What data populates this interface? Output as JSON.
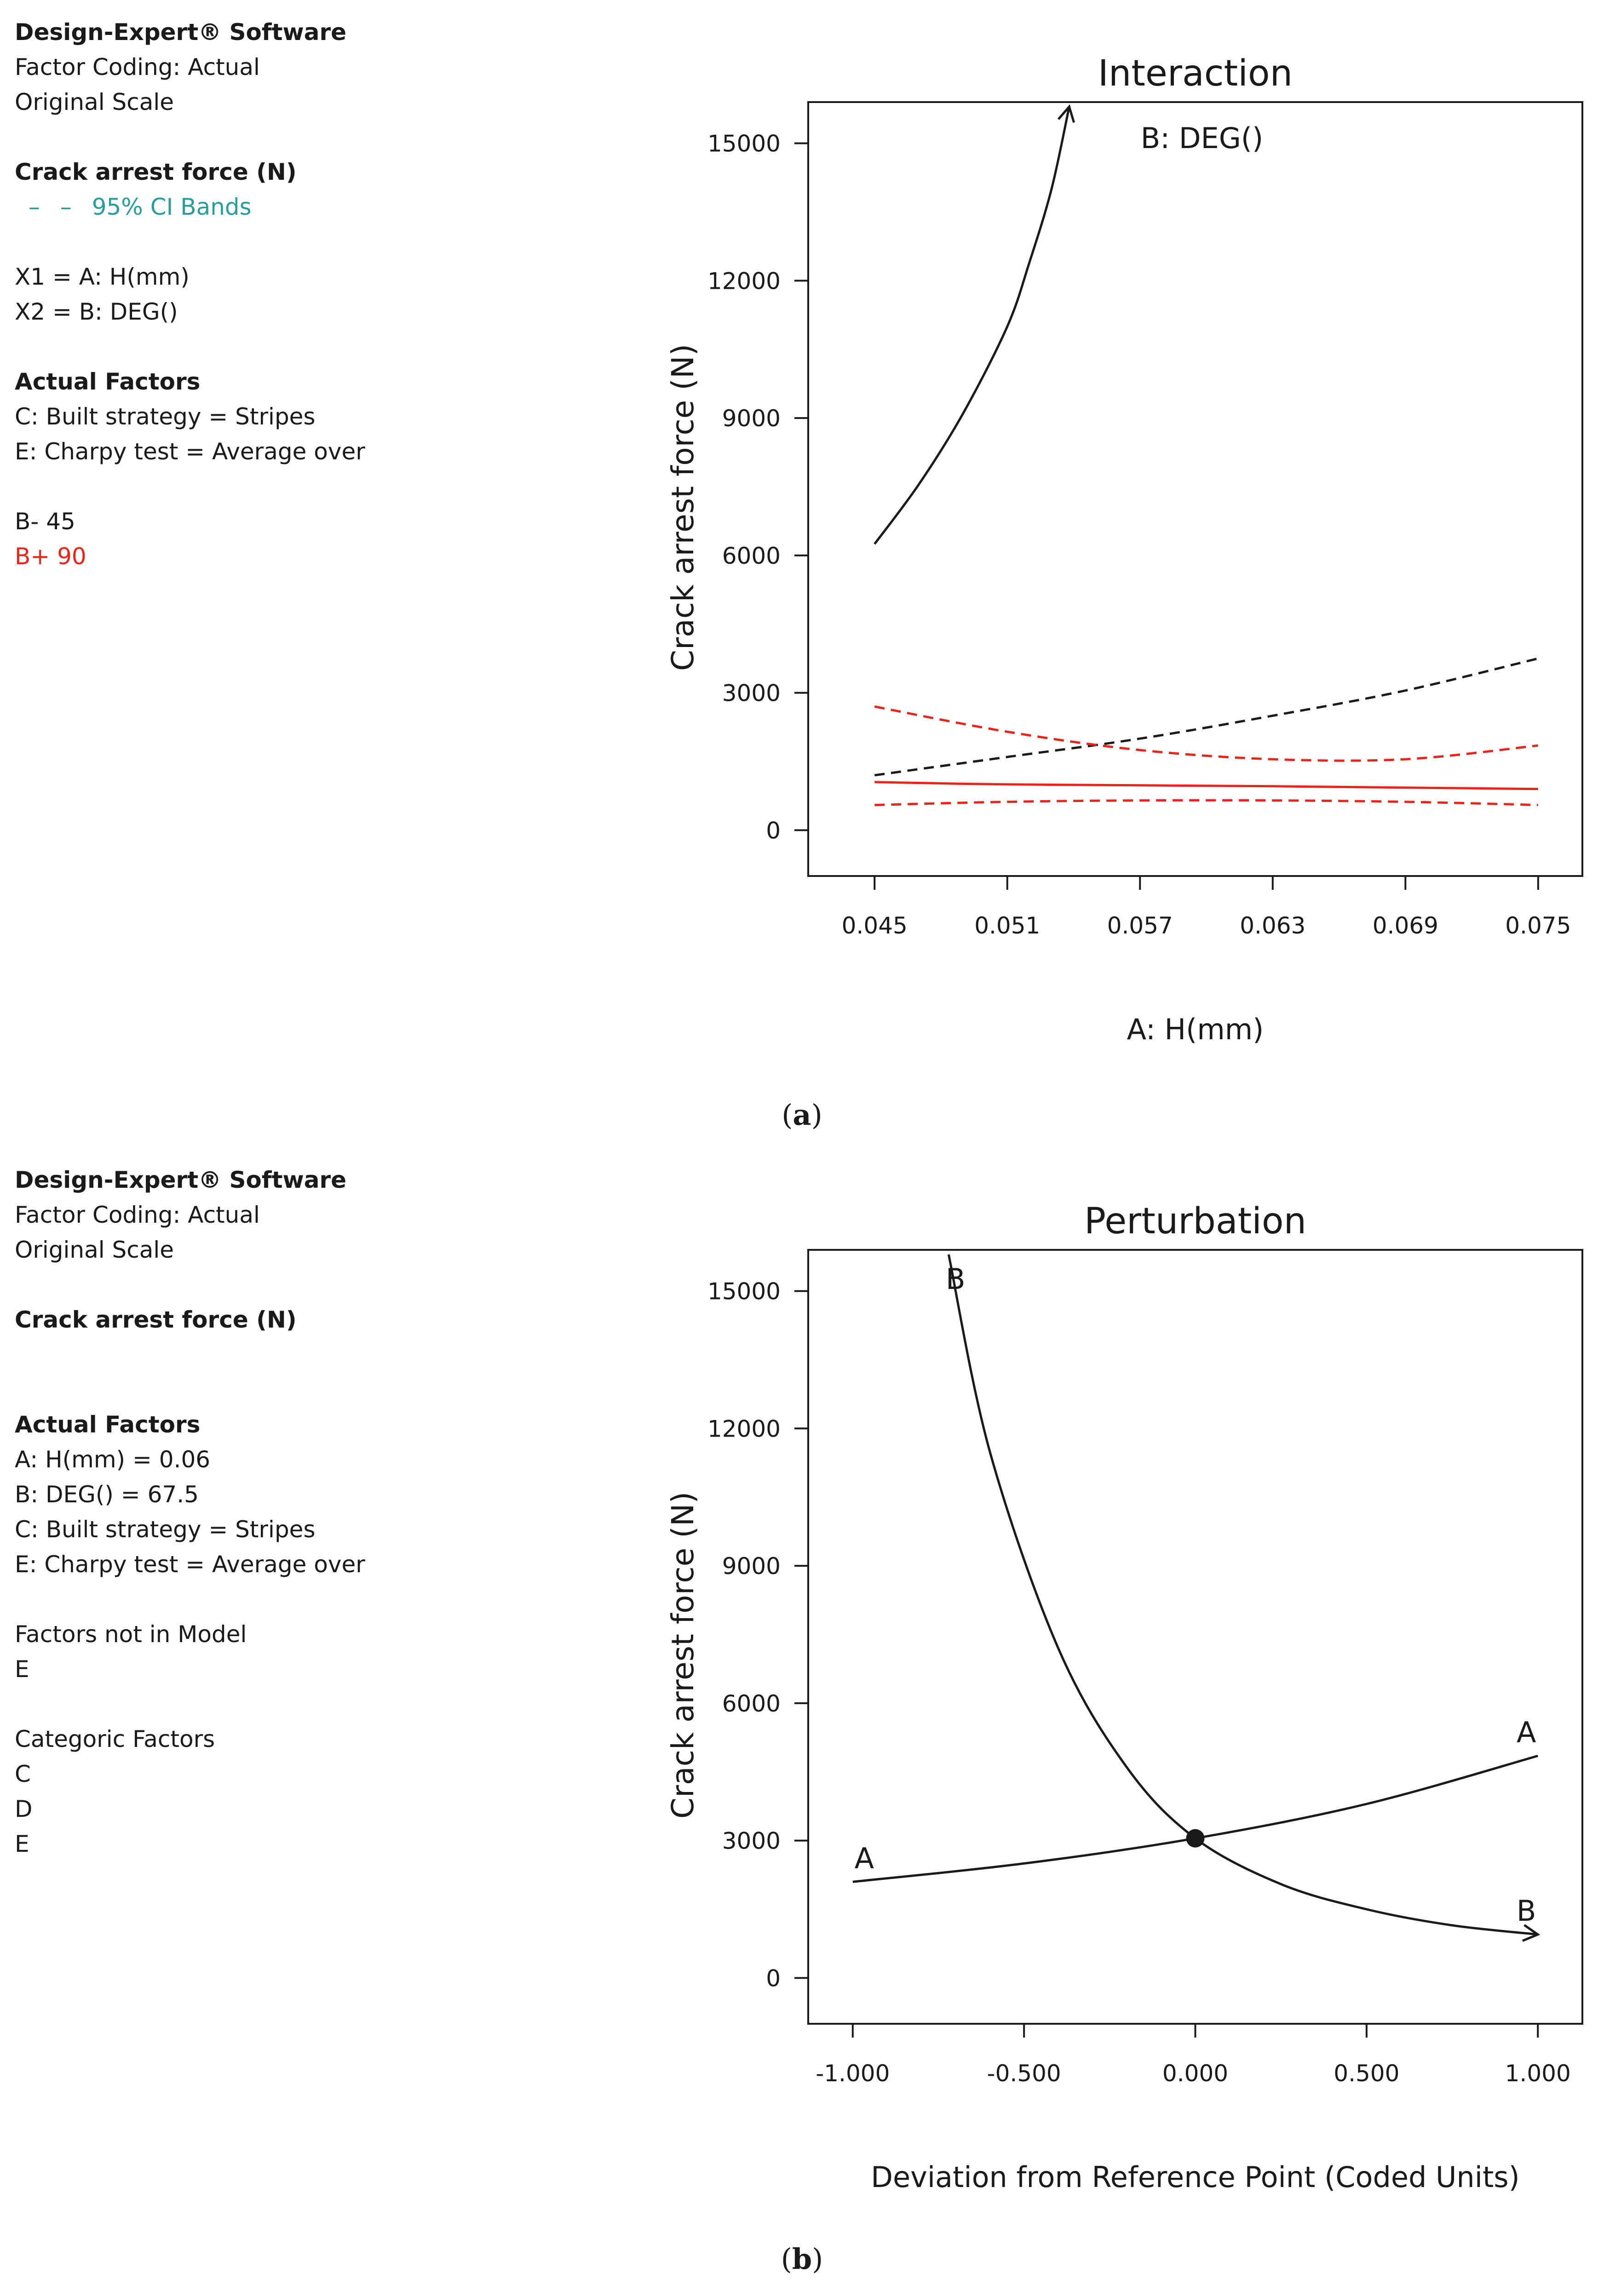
{
  "panel_a": {
    "info": {
      "software": "Design-Expert® Software",
      "coding": "Factor Coding: Actual",
      "scale": "Original Scale",
      "response": "Crack arrest force (N)",
      "ci_label": "95% CI Bands",
      "x1": "X1 = A: H(mm)",
      "x2": "X2 = B: DEG()",
      "actual_factors_heading": "Actual Factors",
      "factor_c": "C: Built strategy = Stripes",
      "factor_e": "E: Charpy test = Average over",
      "b_minus": "B- 45",
      "b_plus": "B+ 90"
    },
    "caption_open": "(",
    "caption_letter": "a",
    "caption_close": ")"
  },
  "panel_b": {
    "info": {
      "software": "Design-Expert® Software",
      "coding": "Factor Coding: Actual",
      "scale": "Original Scale",
      "response": "Crack arrest force (N)",
      "actual_factors_heading": "Actual Factors",
      "factor_a": "A: H(mm) = 0.06",
      "factor_b": "B: DEG() = 67.5",
      "factor_c": "C: Built strategy = Stripes",
      "factor_e": "E: Charpy test = Average over",
      "not_in_model_heading": "Factors not in Model",
      "not_in_model_1": "E",
      "categoric_heading": "Categoric Factors",
      "categoric_1": "C",
      "categoric_2": "D",
      "categoric_3": "E"
    },
    "caption_open": "(",
    "caption_letter": "b",
    "caption_close": ")"
  },
  "colors": {
    "black": "#1a1a1a",
    "red": "#e8241b",
    "cyan": "#2a9d9a"
  },
  "chart_data": [
    {
      "type": "line",
      "title": "Interaction",
      "legend_title": "B: DEG()",
      "xlabel": "A: H(mm)",
      "ylabel": "Crack arrest force (N)",
      "xlim": [
        0.042,
        0.077
      ],
      "ylim": [
        -1000,
        15900
      ],
      "xticks": [
        0.045,
        0.051,
        0.057,
        0.063,
        0.069,
        0.075
      ],
      "xtick_labels": [
        "0.045",
        "0.051",
        "0.057",
        "0.063",
        "0.069",
        "0.075"
      ],
      "yticks": [
        0,
        3000,
        6000,
        9000,
        12000,
        15000
      ],
      "ytick_labels": [
        "0",
        "3000",
        "6000",
        "9000",
        "12000",
        "15000"
      ],
      "series": [
        {
          "name": "B- 45",
          "role": "mean",
          "color": "#1a1a1a",
          "dash": false,
          "arrow": true,
          "x": [
            0.045,
            0.047,
            0.049,
            0.051,
            0.052,
            0.053,
            0.0538
          ],
          "y": [
            6250,
            7550,
            9100,
            11000,
            12400,
            14000,
            15800
          ]
        },
        {
          "name": "B- 45 95% CI",
          "role": "ci",
          "color": "#1a1a1a",
          "dash": true,
          "x": [
            0.045,
            0.051,
            0.057,
            0.063,
            0.069,
            0.075
          ],
          "y": [
            1200,
            1600,
            2000,
            2500,
            3050,
            3750
          ]
        },
        {
          "name": "B+ 90",
          "role": "mean",
          "color": "#e8241b",
          "dash": false,
          "x": [
            0.045,
            0.051,
            0.057,
            0.063,
            0.069,
            0.075
          ],
          "y": [
            1050,
            1000,
            980,
            960,
            930,
            900
          ]
        },
        {
          "name": "B+ 90 upper 95% CI",
          "role": "ci",
          "color": "#e8241b",
          "dash": true,
          "x": [
            0.045,
            0.051,
            0.057,
            0.063,
            0.069,
            0.075
          ],
          "y": [
            2700,
            2150,
            1750,
            1550,
            1550,
            1850
          ]
        },
        {
          "name": "B+ 90 lower 95% CI",
          "role": "ci",
          "color": "#e8241b",
          "dash": true,
          "x": [
            0.045,
            0.051,
            0.057,
            0.063,
            0.069,
            0.075
          ],
          "y": [
            550,
            620,
            650,
            650,
            620,
            550
          ]
        }
      ]
    },
    {
      "type": "line",
      "title": "Perturbation",
      "xlabel": "Deviation from Reference Point (Coded Units)",
      "ylabel": "Crack arrest force (N)",
      "xlim": [
        -1.13,
        1.13
      ],
      "ylim": [
        -1000,
        15900
      ],
      "xticks": [
        -1,
        -0.5,
        0,
        0.5,
        1
      ],
      "xtick_labels": [
        "-1.000",
        "-0.500",
        "0.000",
        "0.500",
        "1.000"
      ],
      "yticks": [
        0,
        3000,
        6000,
        9000,
        12000,
        15000
      ],
      "ytick_labels": [
        "0",
        "3000",
        "6000",
        "9000",
        "12000",
        "15000"
      ],
      "reference_point": {
        "x": 0,
        "y": 3050
      },
      "series": [
        {
          "name": "A",
          "color": "#1a1a1a",
          "labels": [
            "A",
            "A"
          ],
          "x": [
            -1,
            -0.5,
            0,
            0.5,
            1
          ],
          "y": [
            2100,
            2500,
            3050,
            3800,
            4850
          ]
        },
        {
          "name": "B",
          "color": "#1a1a1a",
          "arrow": true,
          "labels": [
            "B",
            "B"
          ],
          "x": [
            -0.72,
            -0.6,
            -0.4,
            -0.2,
            0,
            0.25,
            0.5,
            0.75,
            1
          ],
          "y": [
            15800,
            11500,
            7200,
            4600,
            3050,
            2050,
            1500,
            1150,
            950
          ]
        }
      ]
    }
  ]
}
